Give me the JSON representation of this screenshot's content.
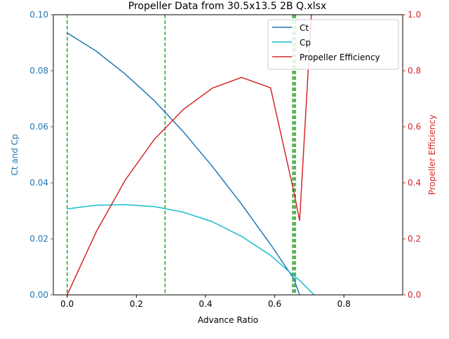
{
  "chart_data": {
    "type": "line",
    "title": "Propeller Data from 30.5x13.5 2B Q.xlsx",
    "xlabel": "Advance Ratio",
    "ylabel_left": "Ct and Cp",
    "ylabel_right": "Propeller Efficiency",
    "xlim": [
      -0.04,
      0.97
    ],
    "ylim_left": [
      0,
      0.1
    ],
    "ylim_right": [
      0,
      1.0
    ],
    "x_ticks": [
      0.0,
      0.2,
      0.4,
      0.6,
      0.8
    ],
    "x_tick_labels": [
      "0.0",
      "0.2",
      "0.4",
      "0.6",
      "0.8"
    ],
    "y_left_ticks": [
      0.0,
      0.02,
      0.04,
      0.06,
      0.08,
      0.1
    ],
    "y_left_tick_labels": [
      "0.00",
      "0.02",
      "0.04",
      "0.06",
      "0.08",
      "0.10"
    ],
    "y_right_ticks": [
      0.0,
      0.2,
      0.4,
      0.6,
      0.8,
      1.0
    ],
    "y_right_tick_labels": [
      "0.0",
      "0.2",
      "0.4",
      "0.6",
      "0.8",
      "1.0"
    ],
    "grid": false,
    "legend_position": "top-right",
    "left_axis_color": "#1f77b4",
    "right_axis_color": "#d62728",
    "series": [
      {
        "name": "Ct",
        "axis": "left",
        "color": "#1f77b4",
        "x": [
          0.0,
          0.084,
          0.168,
          0.252,
          0.336,
          0.42,
          0.504,
          0.588,
          0.655,
          0.672
        ],
        "y": [
          0.0935,
          0.087,
          0.0788,
          0.0693,
          0.0582,
          0.0458,
          0.0324,
          0.018,
          0.0058,
          0.0
        ]
      },
      {
        "name": "Cp",
        "axis": "left",
        "color": "#17becf",
        "x": [
          0.0,
          0.084,
          0.168,
          0.252,
          0.336,
          0.42,
          0.504,
          0.588,
          0.655,
          0.672,
          0.714
        ],
        "y": [
          0.0307,
          0.032,
          0.0322,
          0.0315,
          0.0295,
          0.0261,
          0.0209,
          0.0141,
          0.0068,
          0.0052,
          0.0
        ]
      },
      {
        "name": "Propeller Efficiency",
        "axis": "right",
        "color": "#d62728",
        "x": [
          0.0,
          0.084,
          0.168,
          0.252,
          0.336,
          0.42,
          0.504,
          0.588,
          0.655,
          0.672,
          0.706
        ],
        "y": [
          0.0,
          0.225,
          0.41,
          0.555,
          0.662,
          0.738,
          0.776,
          0.739,
          0.37,
          0.265,
          1.0
        ]
      }
    ],
    "vlines": {
      "color": "#2ca02c",
      "x": [
        0.0,
        0.283,
        0.652,
        0.656,
        0.66
      ]
    }
  }
}
